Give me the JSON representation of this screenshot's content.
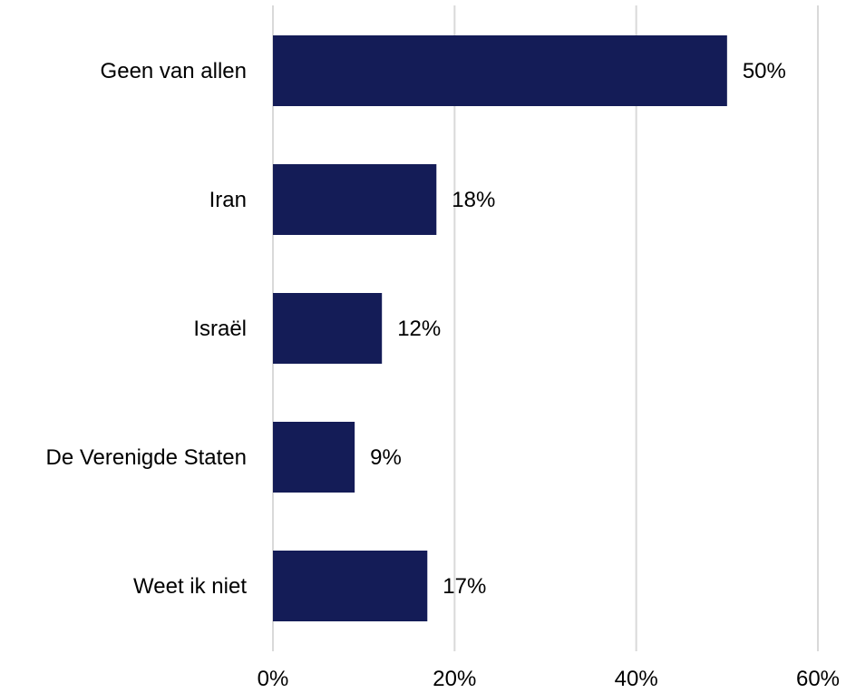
{
  "chart_data": {
    "type": "bar",
    "orientation": "horizontal",
    "categories": [
      "Geen van allen",
      "Iran",
      "Israël",
      "De Verenigde Staten",
      "Weet ik niet"
    ],
    "values": [
      50,
      18,
      12,
      9,
      17
    ],
    "data_labels": [
      "50%",
      "18%",
      "12%",
      "9%",
      "17%"
    ],
    "xlim": [
      0,
      60
    ],
    "x_ticks": [
      0,
      20,
      40,
      60
    ],
    "x_tick_labels": [
      "0%",
      "20%",
      "40%",
      "60%"
    ],
    "title": "",
    "xlabel": "",
    "ylabel": "",
    "grid": "vertical",
    "legend": "none",
    "colors": {
      "bar": "#141c57",
      "gridline": "#d9d9d9",
      "text": "#000000"
    }
  }
}
